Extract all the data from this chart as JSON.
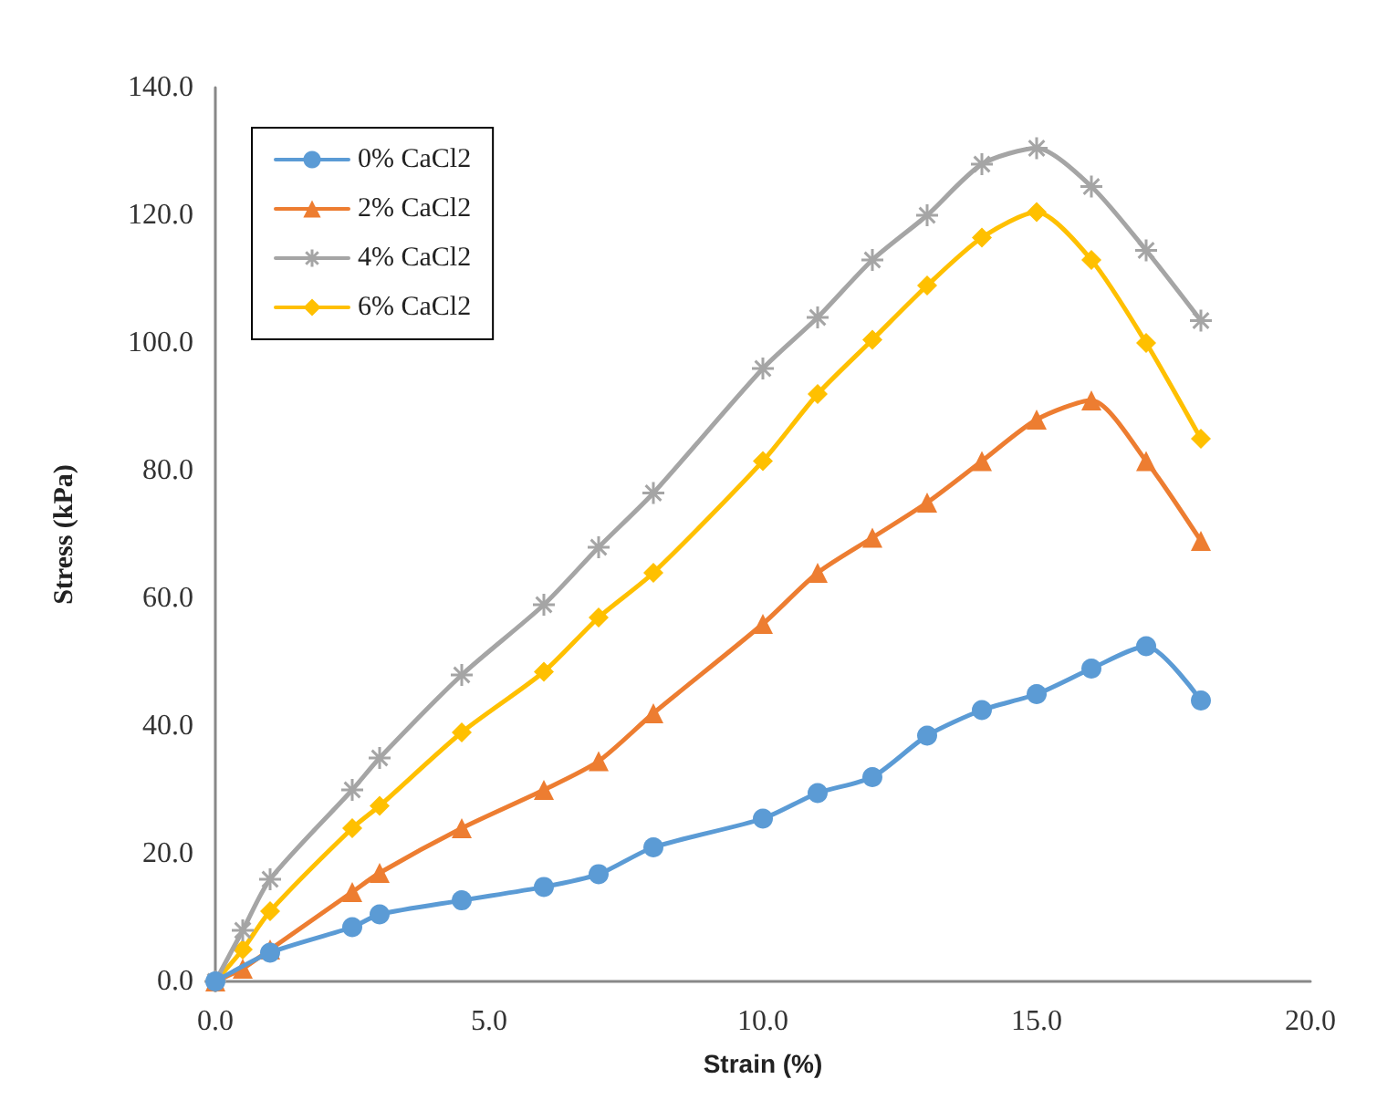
{
  "chart_data": {
    "type": "line",
    "xlabel": "Strain (%)",
    "ylabel": "Stress (kPa)",
    "xlim": [
      0,
      20
    ],
    "xticks": [
      {
        "value": 0,
        "label": "0.0"
      },
      {
        "value": 5,
        "label": "5.0"
      },
      {
        "value": 10,
        "label": "10.0"
      },
      {
        "value": 15,
        "label": "15.0"
      },
      {
        "value": 20,
        "label": "20.0"
      }
    ],
    "ylim": [
      0,
      140
    ],
    "yticks": [
      {
        "value": 0,
        "label": "0.0"
      },
      {
        "value": 20,
        "label": "20.0"
      },
      {
        "value": 40,
        "label": "40.0"
      },
      {
        "value": 60,
        "label": "60.0"
      },
      {
        "value": 80,
        "label": "80.0"
      },
      {
        "value": 100,
        "label": "100.0"
      },
      {
        "value": 120,
        "label": "120.0"
      },
      {
        "value": 140,
        "label": "140.0"
      }
    ],
    "x": [
      0,
      0.5,
      1,
      2.5,
      3,
      4.5,
      6,
      7,
      8,
      10,
      11,
      12,
      13,
      14,
      15,
      16,
      17,
      18
    ],
    "grid": false,
    "legend": "top left",
    "series": [
      {
        "name": "0% CaCl2",
        "color": "#5b9bd5",
        "marker": "circle",
        "values": [
          0,
          null,
          4.5,
          8.5,
          10.5,
          12.7,
          14.8,
          16.8,
          21,
          25.5,
          29.5,
          32,
          38.5,
          42.5,
          45,
          49,
          52.5,
          44
        ]
      },
      {
        "name": "2% CaCl2",
        "color": "#ed7d31",
        "marker": "triangle",
        "values": [
          0,
          2,
          5,
          14,
          17,
          24,
          30,
          34.5,
          42,
          56,
          64,
          69.5,
          75,
          81.5,
          88,
          91,
          81.5,
          69
        ]
      },
      {
        "name": "4% CaCl2",
        "color": "#a5a5a5",
        "marker": "cross",
        "values": [
          0,
          8,
          16,
          30,
          35,
          48,
          59,
          68,
          76.5,
          96,
          104,
          113,
          120,
          128,
          130.5,
          124.5,
          114.5,
          103.5
        ]
      },
      {
        "name": "6% CaCl2",
        "color": "#ffc000",
        "marker": "diamond",
        "values": [
          0,
          5,
          11,
          24,
          27.5,
          39,
          48.5,
          57,
          64,
          81.5,
          92,
          100.5,
          109,
          116.5,
          120.5,
          113,
          100,
          85
        ]
      }
    ]
  }
}
